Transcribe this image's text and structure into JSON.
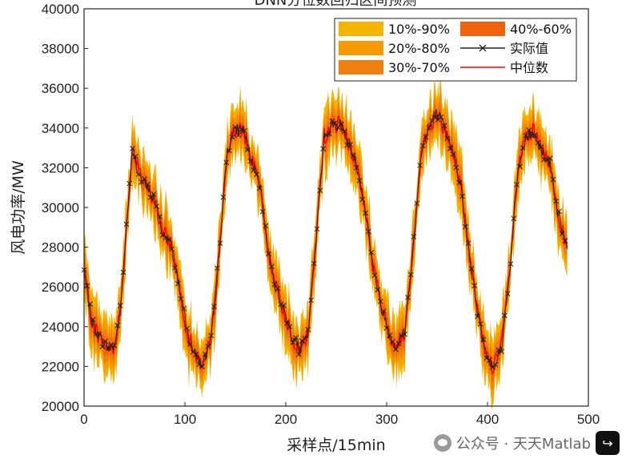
{
  "chart_data": {
    "type": "line",
    "title": "DNN分位数回归区间预测",
    "xlabel": "采样点/15min",
    "ylabel": "风电功率/MW",
    "xlim": [
      0,
      500
    ],
    "ylim": [
      20000,
      40000
    ],
    "x_ticks": [
      0,
      100,
      200,
      300,
      400,
      500
    ],
    "y_ticks": [
      20000,
      22000,
      24000,
      26000,
      28000,
      30000,
      32000,
      34000,
      36000,
      38000,
      40000
    ],
    "n_samples": 480,
    "actual_anchors": {
      "x": [
        0,
        8,
        16,
        24,
        30,
        36,
        42,
        48,
        55,
        62,
        70,
        78,
        86,
        94,
        102,
        110,
        118,
        126,
        134,
        142,
        150,
        158,
        166,
        174,
        182,
        190,
        198,
        206,
        214,
        222,
        230,
        238,
        246,
        254,
        262,
        270,
        278,
        286,
        294,
        302,
        310,
        318,
        326,
        334,
        342,
        350,
        358,
        366,
        374,
        382,
        390,
        398,
        406,
        414,
        422,
        430,
        438,
        446,
        454,
        462,
        470,
        478
      ],
      "y": [
        26800,
        24200,
        23400,
        22900,
        23000,
        24800,
        29000,
        33000,
        31600,
        31000,
        30400,
        28700,
        28200,
        26200,
        23800,
        22600,
        22100,
        23300,
        27800,
        32900,
        33900,
        34000,
        32300,
        31200,
        28000,
        26000,
        24800,
        23600,
        22800,
        23600,
        28400,
        33600,
        34100,
        34200,
        33300,
        32200,
        30200,
        27200,
        25200,
        23700,
        23000,
        23800,
        27800,
        32800,
        34000,
        34800,
        33800,
        32800,
        31000,
        27600,
        24800,
        22700,
        22000,
        23000,
        26800,
        31800,
        33500,
        33800,
        32800,
        32200,
        29800,
        28000
      ]
    },
    "series": [
      {
        "name": "10%-90%",
        "type": "band",
        "color": "#f5b400"
      },
      {
        "name": "20%-80%",
        "type": "band",
        "color": "#f79a00"
      },
      {
        "name": "30%-70%",
        "type": "band",
        "color": "#f07f10"
      },
      {
        "name": "40%-60%",
        "type": "band",
        "color": "#f0620c"
      },
      {
        "name": "实际值",
        "type": "line-marker",
        "color": "#222222",
        "marker": "x"
      },
      {
        "name": "中位数",
        "type": "line",
        "color": "#ff0000"
      }
    ],
    "legend_position": "top-right",
    "grid": false
  },
  "watermark": {
    "text": "公众号 · 天天Matlab"
  }
}
